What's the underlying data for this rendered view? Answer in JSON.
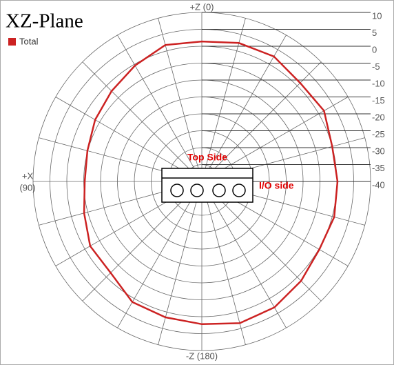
{
  "chart_data": {
    "type": "polar",
    "title": "XZ-Plane",
    "axis_labels": {
      "top": "+Z (0)",
      "left": [
        "+X",
        "(90)"
      ],
      "bottom": "-Z (180)"
    },
    "annotations": [
      "Top Side",
      "I/O side"
    ],
    "theta": [
      0,
      15,
      30,
      45,
      60,
      75,
      90,
      105,
      120,
      135,
      150,
      165,
      180,
      195,
      210,
      225,
      240,
      255,
      270,
      285,
      300,
      315,
      330,
      345
    ],
    "series": [
      {
        "name": "Total",
        "color": "#cc2222",
        "values": [
          1.4,
          1.8,
          -0.4,
          -2.2,
          -3.5,
          -4.9,
          -5.3,
          -3.9,
          -1.8,
          -1.8,
          1.2,
          1.6,
          2.2,
          3.4,
          3.0,
          1.6,
          0.2,
          0.6,
          0.2,
          0.0,
          1.8,
          1.2,
          2.7,
          2.4
        ]
      }
    ],
    "rlim": [
      -40,
      10
    ],
    "rticks": [
      10,
      5,
      0,
      -5,
      -10,
      -15,
      -20,
      -25,
      -30,
      -35,
      -40
    ],
    "thetaticks": [
      0,
      15,
      30,
      45,
      60,
      75,
      90,
      105,
      120,
      135,
      150,
      165,
      180,
      195,
      210,
      225,
      240,
      255,
      270,
      285,
      300,
      315,
      330,
      345
    ],
    "grid": true,
    "legend": "upper left"
  }
}
